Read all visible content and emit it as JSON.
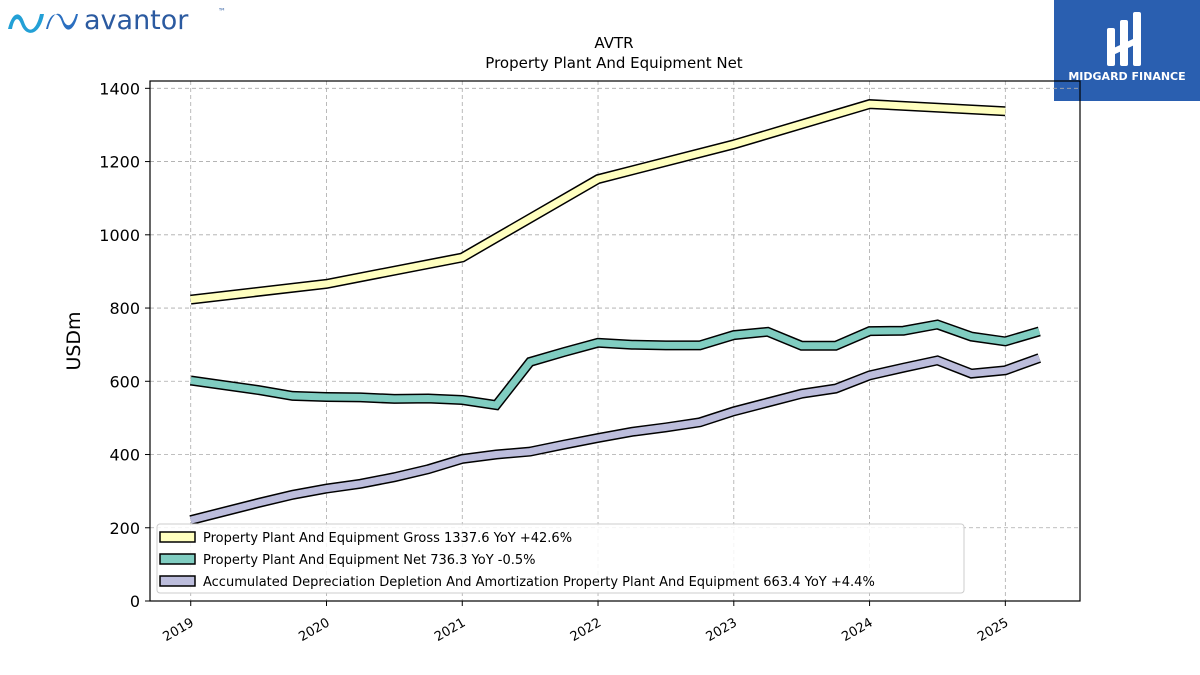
{
  "brand": {
    "company_logo_text": "avantor",
    "company_logo_tm": "™",
    "publisher_logo_text": "MIDGARD FINANCE"
  },
  "chart_data": {
    "type": "line",
    "title": "AVTR",
    "subtitle": "Property Plant And Equipment Net",
    "xlabel": "",
    "ylabel": "USDm",
    "xlim": [
      2018.7,
      2025.55
    ],
    "ylim": [
      0,
      1420
    ],
    "x_ticks": [
      "2019",
      "2020",
      "2021",
      "2022",
      "2023",
      "2024",
      "2025"
    ],
    "y_ticks": [
      0,
      200,
      400,
      600,
      800,
      1000,
      1200,
      1400
    ],
    "grid": true,
    "legend_position": "lower-left",
    "series": [
      {
        "name": "Property Plant And Equipment Gross",
        "legend_label": "Property Plant And Equipment Gross  1337.6 YoY +42.6%",
        "color": "#ffffbf",
        "x": [
          2019.0,
          2020.0,
          2021.0,
          2022.0,
          2023.0,
          2024.0,
          2025.0
        ],
        "y": [
          823,
          866,
          938,
          1152,
          1247,
          1357,
          1337.6
        ]
      },
      {
        "name": "Property Plant And Equipment Net",
        "legend_label": "Property Plant And Equipment Net  736.3 YoY -0.5%",
        "color": "#80cdc1",
        "x": [
          2019.0,
          2019.5,
          2019.75,
          2020.0,
          2020.25,
          2020.5,
          2020.75,
          2021.0,
          2021.25,
          2021.5,
          2021.75,
          2022.0,
          2022.25,
          2022.5,
          2022.75,
          2023.0,
          2023.25,
          2023.5,
          2023.75,
          2024.0,
          2024.25,
          2024.5,
          2024.75,
          2025.0,
          2025.25
        ],
        "y": [
          602,
          576,
          560,
          557,
          556,
          552,
          553,
          549,
          535,
          653,
          680,
          705,
          700,
          698,
          698,
          726,
          735,
          697,
          697,
          737,
          738,
          755,
          722,
          709,
          736.3
        ]
      },
      {
        "name": "Accumulated Depreciation Depletion And Amortization Property Plant And Equipment",
        "legend_label": "Accumulated Depreciation Depletion And Amortization Property Plant And Equipment  663.4 YoY +4.4%",
        "color": "#bcbddc",
        "x": [
          2019.0,
          2019.5,
          2019.75,
          2020.0,
          2020.25,
          2020.5,
          2020.75,
          2021.0,
          2021.25,
          2021.5,
          2021.75,
          2022.0,
          2022.25,
          2022.5,
          2022.75,
          2023.0,
          2023.25,
          2023.5,
          2023.75,
          2024.0,
          2024.25,
          2024.5,
          2024.75,
          2025.0,
          2025.25
        ],
        "y": [
          221,
          268,
          290,
          307,
          320,
          338,
          360,
          388,
          400,
          408,
          427,
          445,
          462,
          474,
          488,
          518,
          542,
          566,
          580,
          616,
          637,
          657,
          621,
          630,
          663.4
        ]
      }
    ]
  }
}
